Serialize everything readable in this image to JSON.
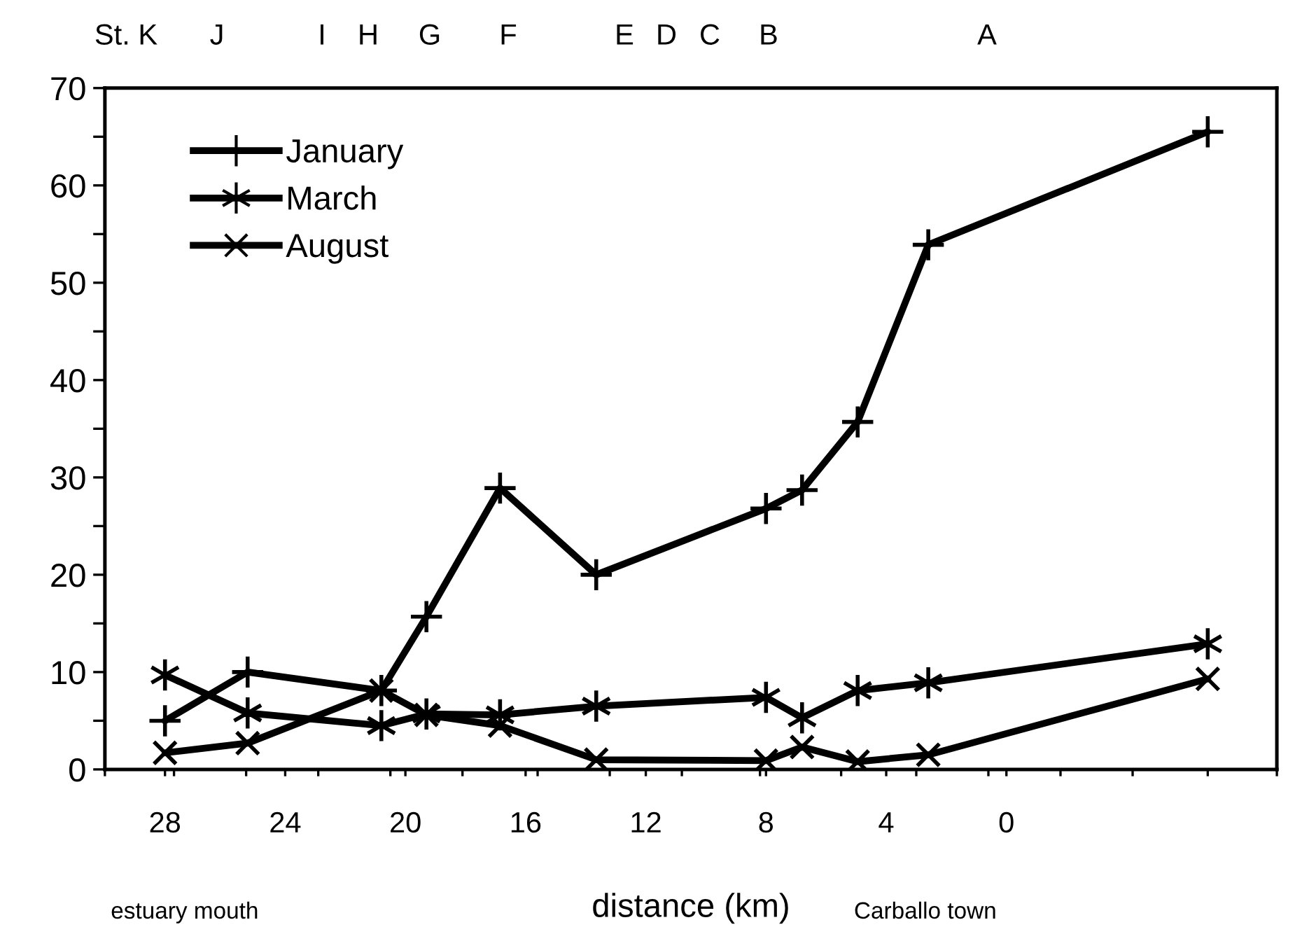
{
  "chart_data": {
    "type": "line",
    "xlabel": "distance (km)",
    "xlim": [
      30,
      -9
    ],
    "ylim": [
      0,
      70
    ],
    "xticks": [
      28,
      24,
      20,
      16,
      12,
      8,
      4,
      0,
      {
        "value": 30,
        "label": null
      },
      {
        "value": 27.7,
        "label": null
      },
      {
        "value": 25.3,
        "label": null
      },
      {
        "value": 22.9,
        "label": null
      },
      {
        "value": 20.5,
        "label": null
      },
      {
        "value": 18.1,
        "label": null
      },
      {
        "value": 15.6,
        "label": null
      },
      {
        "value": 13.2,
        "label": null
      },
      {
        "value": 10.8,
        "label": null
      },
      {
        "value": 8.2,
        "label": null
      },
      {
        "value": 5.5,
        "label": null
      },
      {
        "value": 3.0,
        "label": null
      },
      {
        "value": 0.6,
        "label": null
      },
      {
        "value": -1.8,
        "label": null
      },
      {
        "value": -4.2,
        "label": null
      },
      {
        "value": -6.7,
        "label": null
      },
      {
        "value": -9,
        "label": null
      }
    ],
    "yticks": [
      0,
      {
        "value": 5,
        "label": null
      },
      10,
      {
        "value": 15,
        "label": null
      },
      20,
      {
        "value": 25,
        "label": null
      },
      30,
      {
        "value": 35,
        "label": null
      },
      40,
      {
        "value": 45,
        "label": null
      },
      50,
      {
        "value": 55,
        "label": null
      },
      60,
      {
        "value": 65,
        "label": null
      },
      70
    ],
    "grid": false,
    "legend": "top left",
    "line_style": "solid",
    "annotations": [
      "estuary mouth",
      "Carballo town",
      "St. K",
      "J",
      "I",
      "H",
      "G",
      "F",
      "E",
      "D",
      "C",
      "B",
      "A"
    ],
    "series": [
      {
        "name": "January",
        "color": "#000000",
        "marker": "cross",
        "x": [
          28,
          25.25,
          20.8,
          19.3,
          16.85,
          13.65,
          8,
          6.8,
          4.95,
          2.6,
          -6.7
        ],
        "values": [
          5.0,
          10.0,
          8.1,
          15.7,
          28.9,
          20.0,
          26.8,
          28.7,
          35.7,
          53.9,
          65.5
        ]
      },
      {
        "name": "March",
        "color": "#000000",
        "marker": "cross",
        "x": [
          28,
          25.25,
          20.8,
          19.3,
          16.85,
          13.65,
          8,
          6.8,
          4.95,
          2.6,
          -6.7
        ],
        "values": [
          9.7,
          5.8,
          4.5,
          5.7,
          5.6,
          6.5,
          7.4,
          5.3,
          8.1,
          8.9,
          12.9
        ]
      },
      {
        "name": "August",
        "color": "#000000",
        "marker": "cross",
        "x": [
          28,
          25.25,
          20.8,
          19.3,
          16.85,
          13.65,
          8,
          6.8,
          4.95,
          2.6,
          -6.7
        ],
        "values": [
          1.7,
          2.7,
          8.1,
          5.6,
          4.5,
          1.0,
          0.9,
          2.3,
          0.8,
          1.5,
          9.3
        ]
      }
    ]
  }
}
